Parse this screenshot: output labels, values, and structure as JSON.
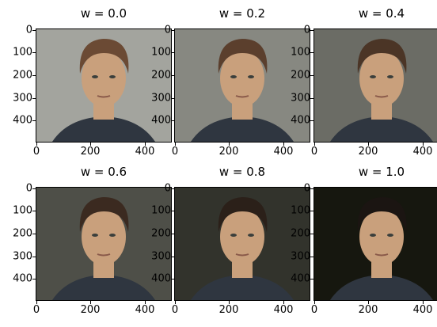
{
  "panels": [
    {
      "title": "w = 0.0",
      "w": 0.0
    },
    {
      "title": "w = 0.2",
      "w": 0.2
    },
    {
      "title": "w = 0.4",
      "w": 0.4
    },
    {
      "title": "w = 0.6",
      "w": 0.6
    },
    {
      "title": "w = 0.8",
      "w": 0.8
    },
    {
      "title": "w = 1.0",
      "w": 1.0
    }
  ],
  "axes": {
    "yticks": [
      "0",
      "100",
      "200",
      "300",
      "400"
    ],
    "xticks": [
      "0",
      "200",
      "400"
    ]
  },
  "colors": {
    "bg_gray": "#a3a49e",
    "bg_dark": "#16170f",
    "shirt": "#2f3640",
    "skin": "#c9a07c",
    "hair_light": "#6b4a34",
    "hair_dark": "#1b1512"
  }
}
